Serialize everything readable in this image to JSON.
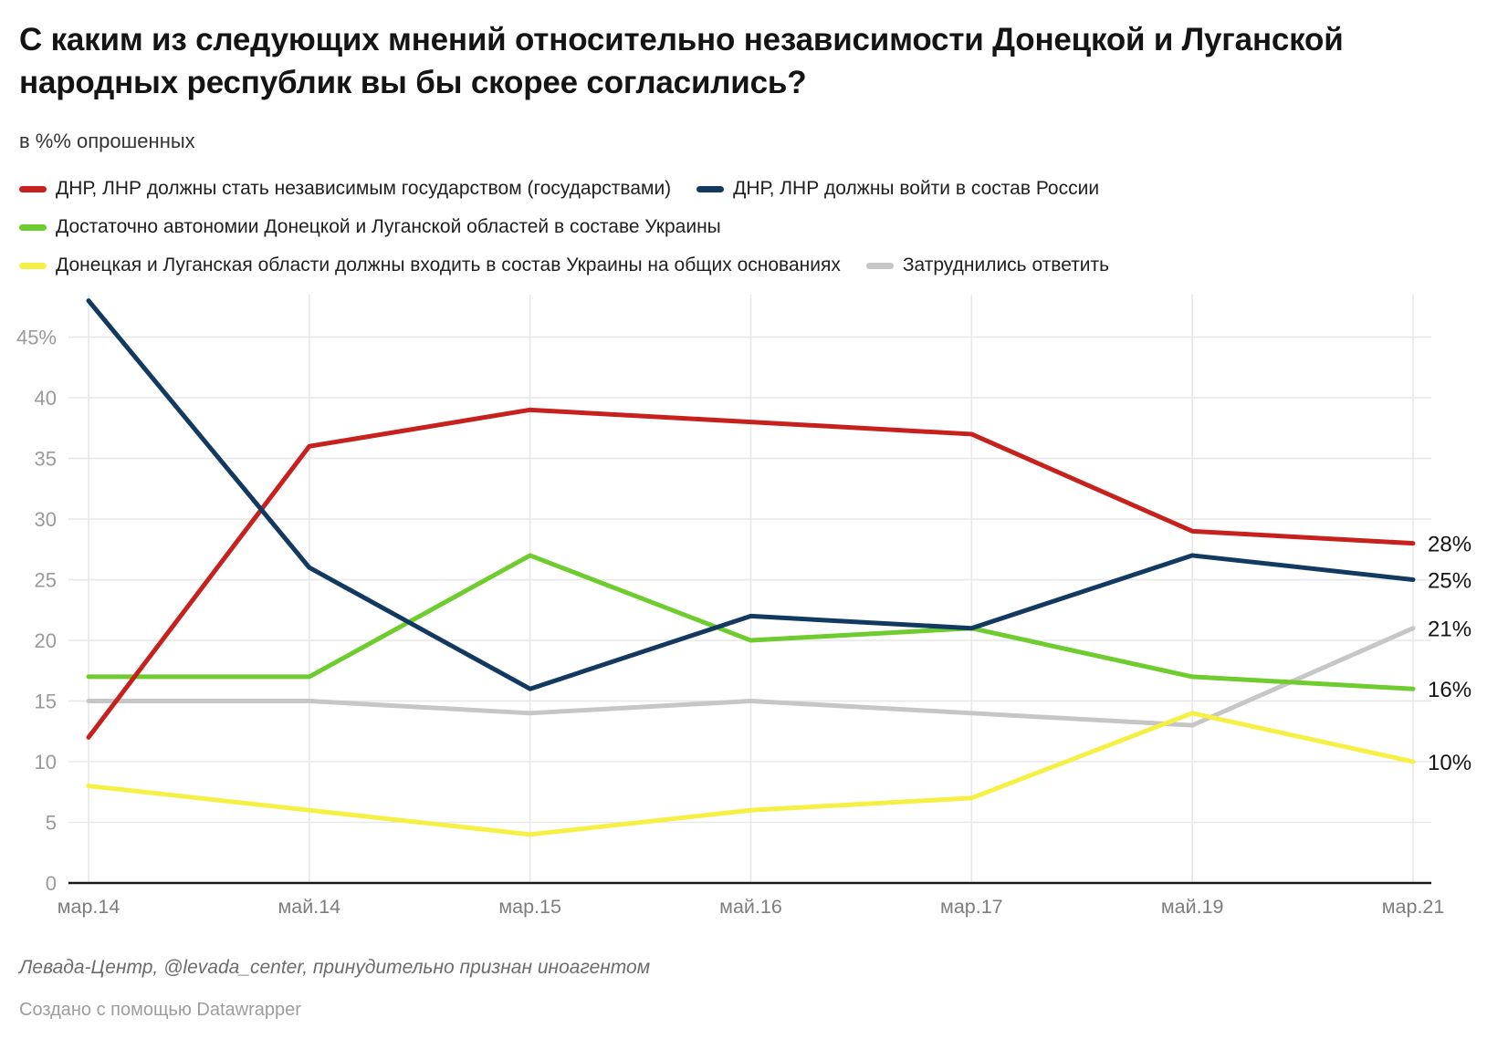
{
  "header": {
    "title": "С каким из следующих мнений относительно независимости Донецкой и Луганской народных республик вы бы скорее согласились?",
    "subtitle": "в %% опрошенных"
  },
  "chart_data": {
    "type": "line",
    "categories": [
      "мар.14",
      "май.14",
      "мар.15",
      "май.16",
      "мар.17",
      "май.19",
      "мар.21"
    ],
    "series": [
      {
        "name": "ДНР, ЛНР должны стать независимым государством (государствами)",
        "color": "#c7211e",
        "values": [
          12,
          36,
          39,
          38,
          37,
          29,
          28
        ],
        "end_label": "28%"
      },
      {
        "name": "ДНР, ЛНР должны войти в состав России",
        "color": "#123a61",
        "values": [
          48,
          26,
          16,
          22,
          21,
          27,
          25
        ],
        "end_label": "25%"
      },
      {
        "name": "Достаточно автономии Донецкой и Луганской областей в составе Украины",
        "color": "#6ecc2e",
        "values": [
          17,
          17,
          27,
          20,
          21,
          17,
          16
        ],
        "end_label": "16%"
      },
      {
        "name": "Донецкая и Луганская области должны входить в состав Украины на общих основаниях",
        "color": "#f5f043",
        "values": [
          8,
          6,
          4,
          6,
          7,
          14,
          10
        ],
        "end_label": "10%"
      },
      {
        "name": "Затруднились ответить",
        "color": "#c6c6c6",
        "values": [
          15,
          15,
          14,
          15,
          14,
          13,
          21
        ],
        "end_label": "21%"
      }
    ],
    "legend_rows": [
      [
        0,
        1
      ],
      [
        2
      ],
      [
        3,
        4
      ]
    ],
    "draw_order": [
      4,
      3,
      2,
      0,
      1
    ],
    "y_ticks": [
      0,
      5,
      10,
      15,
      20,
      25,
      30,
      35,
      40,
      45
    ],
    "y_tick_labels": [
      "0",
      "5",
      "10",
      "15",
      "20",
      "25",
      "30",
      "35",
      "40",
      "45%"
    ],
    "ylim": [
      0,
      48.5
    ],
    "grid": true,
    "legend_position": "top",
    "colors": {
      "grid": "#e8e8e8",
      "axis": "#1a1a1a",
      "y_tick_text": "#9a9a9a",
      "x_tick_text": "#7d7d7d",
      "end_label_text": "#141414"
    }
  },
  "footer": {
    "source": "Левада-Центр, @levada_center, принудительно признан иноагентом",
    "credit": "Создано с помощью Datawrapper"
  }
}
